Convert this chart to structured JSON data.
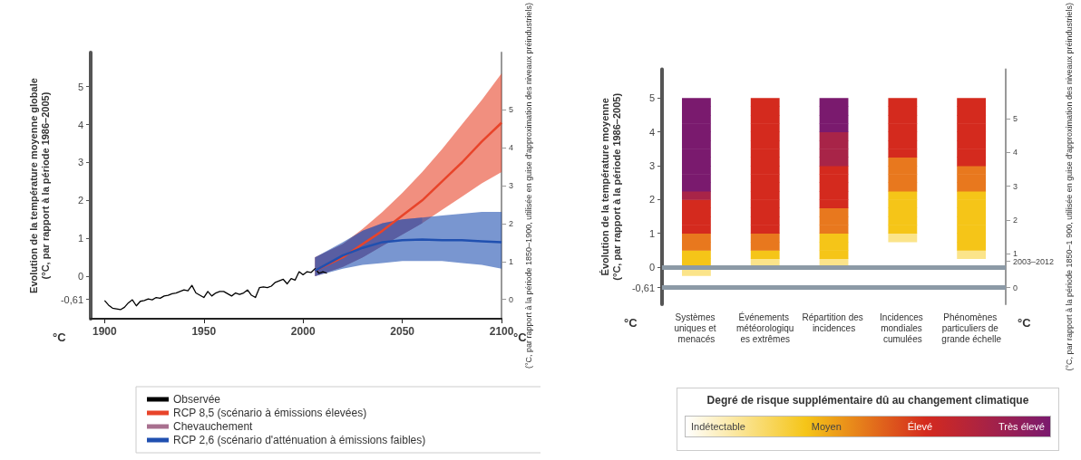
{
  "chart_data": [
    {
      "type": "line",
      "ylabel": "Evolution de la température moyenne globale\n(°C, par rapport à la période 1986–2005)",
      "y2label": "(°C, par rapport à la période 1850–1900, utilisée en guise d'approximation des niveaux préindustriels)",
      "xlim": [
        1893,
        2100
      ],
      "xticks": [
        1900,
        1950,
        2000,
        2050,
        2100
      ],
      "ylim": [
        -1.12,
        5.9
      ],
      "yticks": [
        {
          "value": -0.61,
          "label": "-0,61"
        },
        0,
        1,
        2,
        3,
        4,
        5
      ],
      "y2lim": [
        -0.51,
        6.51
      ],
      "y2ticks": [
        0,
        1,
        2,
        3,
        4,
        5
      ],
      "grid": false,
      "legend": "bottom",
      "marker": "none",
      "annotations": [
        "°C",
        "°C"
      ],
      "series": [
        {
          "name": "Observée",
          "color": "#000000",
          "x": [
            1900,
            1902,
            1904,
            1906,
            1908,
            1910,
            1912,
            1914,
            1916,
            1918,
            1920,
            1922,
            1924,
            1926,
            1928,
            1930,
            1932,
            1934,
            1936,
            1938,
            1940,
            1942,
            1944,
            1946,
            1948,
            1950,
            1952,
            1954,
            1956,
            1958,
            1960,
            1962,
            1964,
            1966,
            1968,
            1970,
            1972,
            1974,
            1976,
            1978,
            1980,
            1982,
            1984,
            1986,
            1988,
            1990,
            1992,
            1994,
            1996,
            1998,
            2000,
            2002,
            2004,
            2006,
            2008,
            2010,
            2012
          ],
          "values": [
            -0.64,
            -0.76,
            -0.84,
            -0.86,
            -0.88,
            -0.82,
            -0.7,
            -0.62,
            -0.78,
            -0.66,
            -0.64,
            -0.6,
            -0.62,
            -0.56,
            -0.58,
            -0.52,
            -0.5,
            -0.46,
            -0.44,
            -0.4,
            -0.36,
            -0.38,
            -0.24,
            -0.44,
            -0.5,
            -0.56,
            -0.4,
            -0.52,
            -0.44,
            -0.4,
            -0.4,
            -0.46,
            -0.52,
            -0.44,
            -0.48,
            -0.44,
            -0.36,
            -0.5,
            -0.56,
            -0.3,
            -0.28,
            -0.3,
            -0.26,
            -0.16,
            -0.12,
            -0.08,
            -0.2,
            -0.06,
            -0.1,
            0.12,
            0.04,
            0.12,
            0.1,
            0.2,
            0.08,
            0.12,
            0.08
          ]
        },
        {
          "name": "RCP 8,5 (scénario à émissions élevées)",
          "color": "#e8442a",
          "x": [
            2006,
            2020,
            2030,
            2040,
            2050,
            2060,
            2070,
            2080,
            2090,
            2100
          ],
          "values": [
            0.15,
            0.5,
            0.85,
            1.2,
            1.6,
            2.0,
            2.5,
            3.0,
            3.55,
            4.05
          ],
          "lower": [
            0.0,
            0.25,
            0.5,
            0.8,
            1.1,
            1.4,
            1.75,
            2.1,
            2.45,
            2.75
          ],
          "upper": [
            0.5,
            0.85,
            1.25,
            1.7,
            2.2,
            2.75,
            3.35,
            4.0,
            4.65,
            5.35
          ]
        },
        {
          "name": "Chevauchement",
          "color": "#a8708f",
          "x": [
            2006,
            2020,
            2030,
            2040,
            2050,
            2060
          ],
          "values": [
            null,
            null,
            null,
            null,
            null,
            null
          ],
          "lower": [
            0.0,
            0.25,
            0.5,
            0.8,
            1.1,
            1.4
          ],
          "upper": [
            0.5,
            0.85,
            1.2,
            1.4,
            1.5,
            1.55
          ]
        },
        {
          "name": "RCP 2,6 (scénario d'atténuation à émissions faibles)",
          "color": "#2050b0",
          "x": [
            2006,
            2020,
            2030,
            2040,
            2050,
            2060,
            2070,
            2080,
            2090,
            2100
          ],
          "values": [
            0.15,
            0.55,
            0.75,
            0.9,
            0.95,
            0.97,
            0.95,
            0.95,
            0.92,
            0.9
          ],
          "lower": [
            0.0,
            0.2,
            0.3,
            0.35,
            0.4,
            0.4,
            0.4,
            0.35,
            0.3,
            0.2
          ],
          "upper": [
            0.5,
            0.9,
            1.2,
            1.4,
            1.5,
            1.55,
            1.6,
            1.65,
            1.7,
            1.7
          ]
        }
      ]
    },
    {
      "type": "bar",
      "ylabel": "Évolution de la température moyenne\n(°C, par rapport à la période 1986–2005)",
      "y2label": "(°C, par rapport à la période 1850–1 900, utilisée en guise d'approximation des niveaux préindustriels)",
      "clabel": "Degré de risque supplémentaire dû au changement climatique",
      "annotations": [
        "°C",
        "°C",
        "Indétectable",
        "Moyen",
        "Élevé",
        "Très élevé"
      ],
      "categories": [
        "Systèmes uniques et menacés",
        "Événements météorologiques extrêmes",
        "Répartition des incidences",
        "Incidences mondiales cumulées",
        "Phénomènes particuliers de grande échelle"
      ],
      "ylim": [
        -1.1,
        5.85
      ],
      "yticks": [
        {
          "value": -0.61,
          "label": "-0,61"
        },
        0,
        1,
        2,
        3,
        4,
        5
      ],
      "y2lim": [
        -0.49,
        6.46
      ],
      "y2ticks": [
        0,
        {
          "value": 0.78,
          "label": "2003–2012"
        },
        1,
        2,
        3,
        4,
        5
      ],
      "ref_lines": [
        {
          "axis": "y",
          "value": 0,
          "color": "#8c9aa6"
        },
        {
          "axis": "y",
          "value": -0.61,
          "color": "#8c9aa6"
        }
      ],
      "series": [
        {
          "base": [
            -0.25,
            null,
            null,
            null,
            null
          ],
          "values": [
            0.25,
            null,
            null,
            null,
            null
          ],
          "colors": [
            "#fbe48a",
            null,
            null,
            null,
            null
          ]
        },
        {
          "base": [
            0,
            0,
            0,
            null,
            null
          ],
          "values": [
            0.25,
            0.25,
            0.25,
            null,
            null
          ],
          "colors": [
            "#f5c518",
            "#fbe48a",
            "#fbe48a",
            null,
            null
          ]
        },
        {
          "base": [
            0.25,
            0.25,
            0.25,
            null,
            0.25
          ],
          "values": [
            0.25,
            0.25,
            0.25,
            null,
            0.25
          ],
          "colors": [
            "#f5c518",
            "#f5c518",
            "#f5c518",
            null,
            "#fbe48a"
          ]
        },
        {
          "base": [
            0.5,
            0.5,
            0.5,
            null,
            0.5
          ],
          "values": [
            0.25,
            0.25,
            0.25,
            null,
            0.25
          ],
          "colors": [
            "#e8781e",
            "#e8781e",
            "#f5c518",
            null,
            "#f5c518"
          ]
        },
        {
          "base": [
            0.75,
            0.75,
            0.75,
            0.75,
            0.75
          ],
          "values": [
            0.25,
            0.25,
            0.25,
            0.25,
            0.25
          ],
          "colors": [
            "#e8781e",
            "#e8781e",
            "#f5c518",
            "#fbe48a",
            "#f5c518"
          ]
        },
        {
          "base": [
            1,
            1,
            1,
            1,
            1
          ],
          "values": [
            0.25,
            0.25,
            0.25,
            0.25,
            0.25
          ],
          "colors": [
            "#d42a1e",
            "#d42a1e",
            "#e8781e",
            "#f5c518",
            "#f5c518"
          ]
        },
        {
          "base": [
            1.25,
            1.25,
            1.25,
            1.25,
            1.25
          ],
          "values": [
            0.25,
            0.25,
            0.25,
            0.25,
            0.25
          ],
          "colors": [
            "#d42a1e",
            "#d42a1e",
            "#e8781e",
            "#f5c518",
            "#f5c518"
          ]
        },
        {
          "base": [
            1.5,
            1.5,
            1.5,
            1.5,
            1.5
          ],
          "values": [
            0.25,
            0.25,
            0.25,
            0.25,
            0.25
          ],
          "colors": [
            "#d42a1e",
            "#d42a1e",
            "#e8781e",
            "#f5c518",
            "#f5c518"
          ]
        },
        {
          "base": [
            1.75,
            1.75,
            1.75,
            1.75,
            1.75
          ],
          "values": [
            0.25,
            0.25,
            0.25,
            0.25,
            0.25
          ],
          "colors": [
            "#d42a1e",
            "#d42a1e",
            "#d42a1e",
            "#f5c518",
            "#f5c518"
          ]
        },
        {
          "base": [
            2,
            2,
            2,
            2,
            2
          ],
          "values": [
            0.25,
            0.25,
            0.25,
            0.25,
            0.25
          ],
          "colors": [
            "#a82448",
            "#d42a1e",
            "#d42a1e",
            "#f5c518",
            "#f5c518"
          ]
        },
        {
          "base": [
            2.25,
            2.25,
            2.25,
            2.25,
            2.25
          ],
          "values": [
            0.25,
            0.25,
            0.25,
            0.25,
            0.25
          ],
          "colors": [
            "#7a1a6e",
            "#d42a1e",
            "#d42a1e",
            "#e8781e",
            "#e8781e"
          ]
        },
        {
          "base": [
            2.5,
            2.5,
            2.5,
            2.5,
            2.5
          ],
          "values": [
            0.25,
            0.25,
            0.25,
            0.25,
            0.25
          ],
          "colors": [
            "#7a1a6e",
            "#d42a1e",
            "#d42a1e",
            "#e8781e",
            "#e8781e"
          ]
        },
        {
          "base": [
            2.75,
            2.75,
            2.75,
            2.75,
            2.75
          ],
          "values": [
            0.25,
            0.25,
            0.25,
            0.25,
            0.25
          ],
          "colors": [
            "#7a1a6e",
            "#d42a1e",
            "#d42a1e",
            "#e8781e",
            "#e8781e"
          ]
        },
        {
          "base": [
            3,
            3,
            3,
            3,
            3
          ],
          "values": [
            0.25,
            0.25,
            0.25,
            0.25,
            0.25
          ],
          "colors": [
            "#7a1a6e",
            "#d42a1e",
            "#a82448",
            "#e8781e",
            "#d42a1e"
          ]
        },
        {
          "base": [
            3.25,
            3.25,
            3.25,
            3.25,
            3.25
          ],
          "values": [
            0.25,
            0.25,
            0.25,
            0.25,
            0.25
          ],
          "colors": [
            "#7a1a6e",
            "#d42a1e",
            "#a82448",
            "#d42a1e",
            "#d42a1e"
          ]
        },
        {
          "base": [
            3.5,
            3.5,
            3.5,
            3.5,
            3.5
          ],
          "values": [
            0.25,
            0.25,
            0.25,
            0.25,
            0.25
          ],
          "colors": [
            "#7a1a6e",
            "#d42a1e",
            "#a82448",
            "#d42a1e",
            "#d42a1e"
          ]
        },
        {
          "base": [
            3.75,
            3.75,
            3.75,
            3.75,
            3.75
          ],
          "values": [
            0.25,
            0.25,
            0.25,
            0.25,
            0.25
          ],
          "colors": [
            "#7a1a6e",
            "#d42a1e",
            "#a82448",
            "#d42a1e",
            "#d42a1e"
          ]
        },
        {
          "base": [
            4,
            4,
            4,
            4,
            4
          ],
          "values": [
            0.25,
            0.25,
            0.25,
            0.25,
            0.25
          ],
          "colors": [
            "#7a1a6e",
            "#d42a1e",
            "#7a1a6e",
            "#d42a1e",
            "#d42a1e"
          ]
        },
        {
          "base": [
            4.25,
            4.25,
            4.25,
            4.25,
            4.25
          ],
          "values": [
            0.25,
            0.25,
            0.25,
            0.25,
            0.25
          ],
          "colors": [
            "#7a1a6e",
            "#d42a1e",
            "#7a1a6e",
            "#d42a1e",
            "#d42a1e"
          ]
        },
        {
          "base": [
            4.5,
            4.5,
            4.5,
            4.5,
            4.5
          ],
          "values": [
            0.25,
            0.25,
            0.25,
            0.25,
            0.25
          ],
          "colors": [
            "#7a1a6e",
            "#d42a1e",
            "#7a1a6e",
            "#d42a1e",
            "#d42a1e"
          ]
        },
        {
          "base": [
            4.75,
            4.75,
            4.75,
            4.75,
            4.75
          ],
          "values": [
            0.25,
            0.25,
            0.25,
            0.25,
            0.25
          ],
          "colors": [
            "#7a1a6e",
            "#d42a1e",
            "#7a1a6e",
            "#d42a1e",
            "#d42a1e"
          ]
        }
      ]
    }
  ]
}
